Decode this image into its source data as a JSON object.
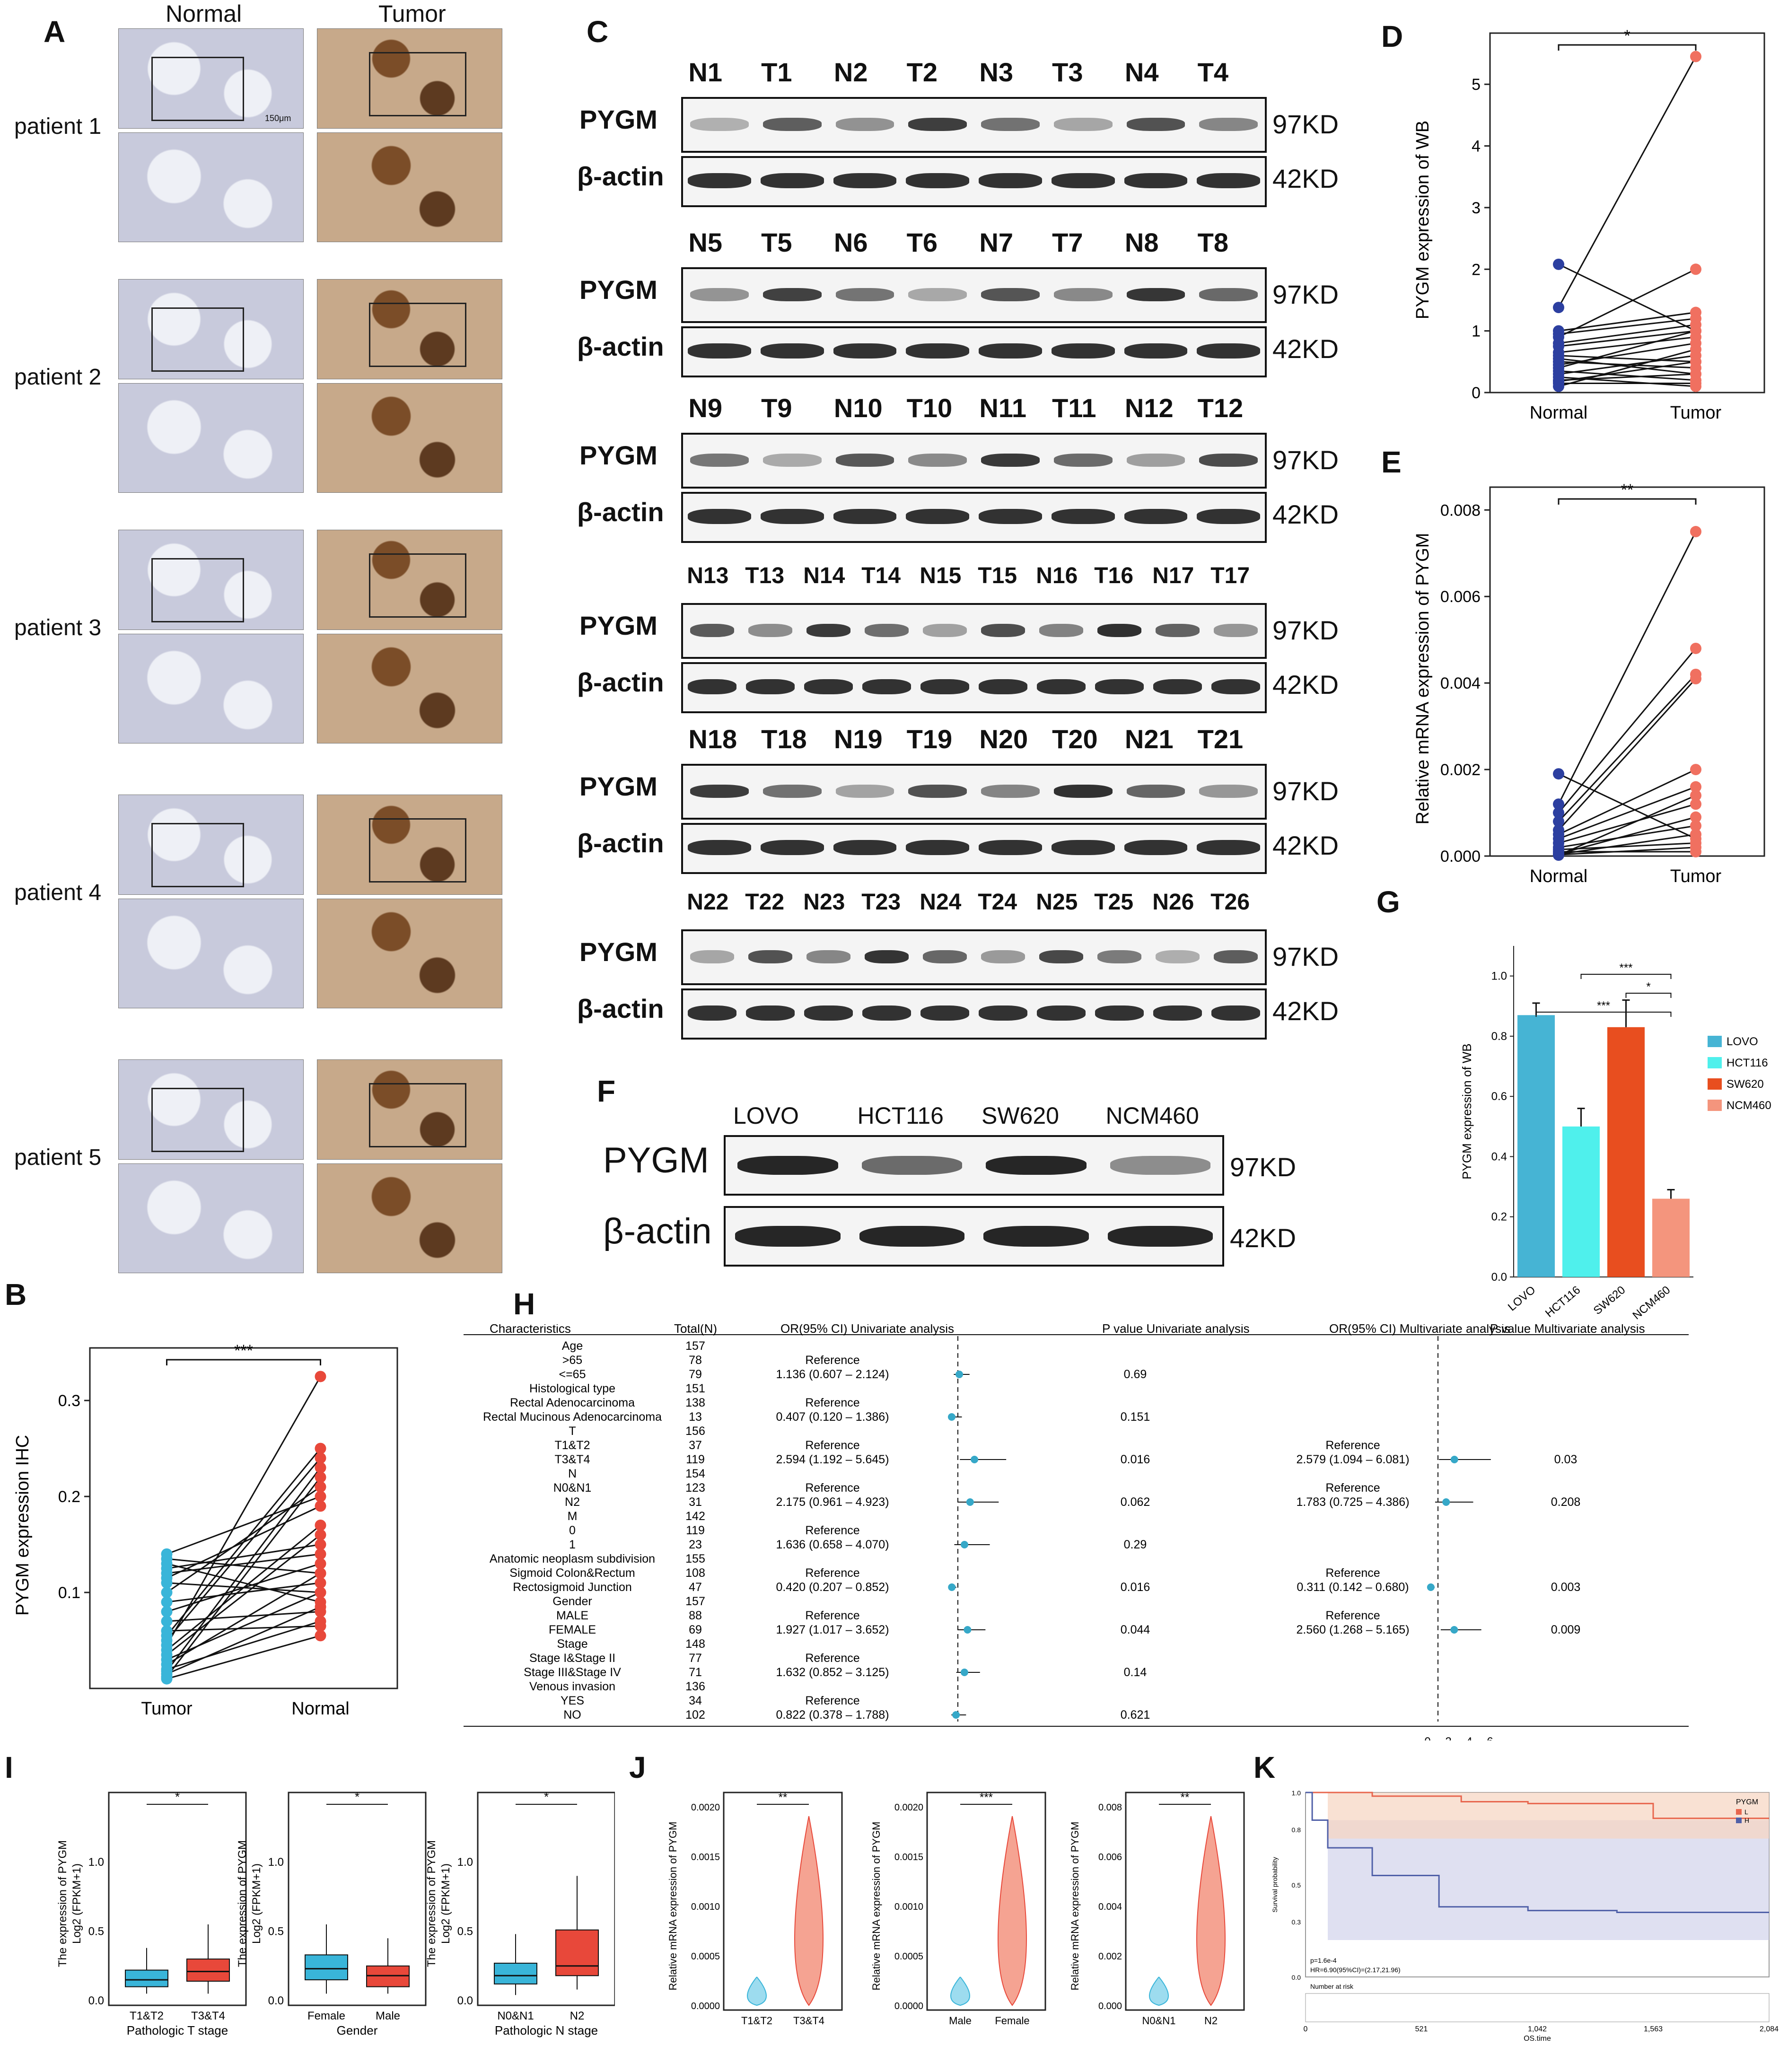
{
  "panels": {
    "A": {
      "label": "A",
      "col_normal": "Normal",
      "col_tumor": "Tumor",
      "rows": [
        "patient 1",
        "patient 2",
        "patient 3",
        "patient 4",
        "patient 5"
      ],
      "scale_bar": "150μm"
    },
    "B": {
      "label": "B",
      "ylabel": "PYGM expression IHC",
      "xcats": [
        "Tumor",
        "Normal"
      ],
      "sig": "***"
    },
    "C": {
      "label": "C",
      "rows": [
        {
          "lanes": [
            "N1",
            "T1",
            "N2",
            "T2",
            "N3",
            "T3",
            "N4",
            "T4"
          ]
        },
        {
          "lanes": [
            "N5",
            "T5",
            "N6",
            "T6",
            "N7",
            "T7",
            "N8",
            "T8"
          ]
        },
        {
          "lanes": [
            "N9",
            "T9",
            "N10",
            "T10",
            "N11",
            "T11",
            "N12",
            "T12"
          ]
        },
        {
          "lanes": [
            "N13",
            "T13",
            "N14",
            "T14",
            "N15",
            "T15",
            "N16",
            "T16",
            "N17",
            "T17"
          ]
        },
        {
          "lanes": [
            "N18",
            "T18",
            "N19",
            "T19",
            "N20",
            "T20",
            "N21",
            "T21"
          ]
        },
        {
          "lanes": [
            "N22",
            "T22",
            "N23",
            "T23",
            "N24",
            "T24",
            "N25",
            "T25",
            "N26",
            "T26"
          ]
        }
      ],
      "protein_label": "PYGM",
      "control_label": "β-actin",
      "mw_protein": "97KD",
      "mw_control": "42KD"
    },
    "D": {
      "label": "D",
      "ylabel": "PYGM expression of WB",
      "xcats": [
        "Normal",
        "Tumor"
      ],
      "sig": "*",
      "yticks": [
        "0",
        "1",
        "2",
        "3",
        "4",
        "5"
      ]
    },
    "E": {
      "label": "E",
      "ylabel": "Relative mRNA expression of PYGM",
      "xcats": [
        "Normal",
        "Tumor"
      ],
      "sig": "**",
      "yticks": [
        "0.000",
        "0.002",
        "0.004",
        "0.006",
        "0.008"
      ]
    },
    "F": {
      "label": "F",
      "lanes": [
        "LOVO",
        "HCT116",
        "SW620",
        "NCM460"
      ],
      "protein_label": "PYGM",
      "control_label": "β-actin",
      "mw_protein": "97KD",
      "mw_control": "42KD"
    },
    "G": {
      "label": "G",
      "ylabel": "PYGM expression of WB",
      "sigs": [
        "***",
        "*",
        "***"
      ],
      "yticks": [
        "0.0",
        "0.2",
        "0.4",
        "0.6",
        "0.8",
        "1.0"
      ]
    },
    "H": {
      "label": "H",
      "headers": [
        "Characteristics",
        "Total(N)",
        "OR(95% CI) Univariate analysis",
        "P value Univariate analysis",
        "OR(95% CI) Multivariate analysis",
        "P value Multivariate analysis"
      ],
      "rows": [
        {
          "c": "Age",
          "n": "157",
          "or": "",
          "p": "",
          "mor": "",
          "mp": ""
        },
        {
          "c": ">65",
          "n": "78",
          "or": "Reference",
          "p": "",
          "mor": "",
          "mp": ""
        },
        {
          "c": "<=65",
          "n": "79",
          "or": "1.136 (0.607 – 2.124)",
          "p": "0.69",
          "mor": "",
          "mp": ""
        },
        {
          "c": "Histological type",
          "n": "151",
          "or": "",
          "p": "",
          "mor": "",
          "mp": ""
        },
        {
          "c": "Rectal Adenocarcinoma",
          "n": "138",
          "or": "Reference",
          "p": "",
          "mor": "",
          "mp": ""
        },
        {
          "c": "Rectal Mucinous Adenocarcinoma",
          "n": "13",
          "or": "0.407 (0.120 – 1.386)",
          "p": "0.151",
          "mor": "",
          "mp": ""
        },
        {
          "c": "T",
          "n": "156",
          "or": "",
          "p": "",
          "mor": "",
          "mp": ""
        },
        {
          "c": "T1&T2",
          "n": "37",
          "or": "Reference",
          "p": "",
          "mor": "Reference",
          "mp": ""
        },
        {
          "c": "T3&T4",
          "n": "119",
          "or": "2.594 (1.192 – 5.645)",
          "p": "0.016",
          "mor": "2.579 (1.094 – 6.081)",
          "mp": "0.03"
        },
        {
          "c": "N",
          "n": "154",
          "or": "",
          "p": "",
          "mor": "",
          "mp": ""
        },
        {
          "c": "N0&N1",
          "n": "123",
          "or": "Reference",
          "p": "",
          "mor": "Reference",
          "mp": ""
        },
        {
          "c": "N2",
          "n": "31",
          "or": "2.175 (0.961 – 4.923)",
          "p": "0.062",
          "mor": "1.783 (0.725 – 4.386)",
          "mp": "0.208"
        },
        {
          "c": "M",
          "n": "142",
          "or": "",
          "p": "",
          "mor": "",
          "mp": ""
        },
        {
          "c": "0",
          "n": "119",
          "or": "Reference",
          "p": "",
          "mor": "",
          "mp": ""
        },
        {
          "c": "1",
          "n": "23",
          "or": "1.636 (0.658 – 4.070)",
          "p": "0.29",
          "mor": "",
          "mp": ""
        },
        {
          "c": "Anatomic neoplasm subdivision",
          "n": "155",
          "or": "",
          "p": "",
          "mor": "",
          "mp": ""
        },
        {
          "c": "Sigmoid Colon&Rectum",
          "n": "108",
          "or": "Reference",
          "p": "",
          "mor": "Reference",
          "mp": ""
        },
        {
          "c": "Rectosigmoid Junction",
          "n": "47",
          "or": "0.420 (0.207 – 0.852)",
          "p": "0.016",
          "mor": "0.311 (0.142 – 0.680)",
          "mp": "0.003"
        },
        {
          "c": "Gender",
          "n": "157",
          "or": "",
          "p": "",
          "mor": "",
          "mp": ""
        },
        {
          "c": "MALE",
          "n": "88",
          "or": "Reference",
          "p": "",
          "mor": "Reference",
          "mp": ""
        },
        {
          "c": "FEMALE",
          "n": "69",
          "or": "1.927 (1.017 – 3.652)",
          "p": "0.044",
          "mor": "2.560 (1.268 – 5.165)",
          "mp": "0.009"
        },
        {
          "c": "Stage",
          "n": "148",
          "or": "",
          "p": "",
          "mor": "",
          "mp": ""
        },
        {
          "c": "Stage I&Stage II",
          "n": "77",
          "or": "Reference",
          "p": "",
          "mor": "",
          "mp": ""
        },
        {
          "c": "Stage III&Stage IV",
          "n": "71",
          "or": "1.632 (0.852 – 3.125)",
          "p": "0.14",
          "mor": "",
          "mp": ""
        },
        {
          "c": "Venous invasion",
          "n": "136",
          "or": "",
          "p": "",
          "mor": "",
          "mp": ""
        },
        {
          "c": "YES",
          "n": "34",
          "or": "Reference",
          "p": "",
          "mor": "",
          "mp": ""
        },
        {
          "c": "NO",
          "n": "102",
          "or": "0.822 (0.378 – 1.788)",
          "p": "0.621",
          "mor": "",
          "mp": ""
        }
      ],
      "multi_axis_ticks": [
        "0",
        "2",
        "4",
        "6"
      ]
    },
    "I": {
      "label": "I",
      "ylabel1": "The expression of PYGM",
      "ylabel2": "Log2 (FPKM+1)",
      "sub": [
        {
          "xcats": [
            "T1&T2",
            "T3&T4"
          ],
          "xlabel": "Pathologic T stage",
          "sig": "*"
        },
        {
          "xcats": [
            "Female",
            "Male"
          ],
          "xlabel": "Gender",
          "sig": "*"
        },
        {
          "xcats": [
            "N0&N1",
            "N2"
          ],
          "xlabel": "Pathologic N stage",
          "sig": "*"
        }
      ],
      "yticks": [
        "0.0",
        "0.5",
        "1.0"
      ]
    },
    "J": {
      "label": "J",
      "ylabel": "Relative mRNA expression of PYGM",
      "sub": [
        {
          "xcats": [
            "T1&T2",
            "T3&T4"
          ],
          "sig": "**",
          "yticks": [
            "0.0000",
            "0.0005",
            "0.0010",
            "0.0015",
            "0.0020"
          ]
        },
        {
          "xcats": [
            "Male",
            "Female"
          ],
          "sig": "***",
          "yticks": [
            "0.0000",
            "0.0005",
            "0.0010",
            "0.0015",
            "0.0020"
          ]
        },
        {
          "xcats": [
            "N0&N1",
            "N2"
          ],
          "sig": "**",
          "yticks": [
            "0.000",
            "0.002",
            "0.004",
            "0.006",
            "0.008"
          ]
        }
      ]
    },
    "K": {
      "label": "K",
      "legend_title": "PYGM",
      "legend_items": [
        "L",
        "H"
      ],
      "ylabel": "Survival probability",
      "yticks": [
        "0.0",
        "0.3",
        "0.5",
        "0.8",
        "1.0"
      ],
      "xticks": [
        "0",
        "521",
        "1,042",
        "1,563",
        "2,084"
      ],
      "xlabel": "OS.time",
      "pval": "p=1.6e-4",
      "hr": "HR=6.90(95%CI)=(2.17,21.96)",
      "risk_title": "Number at risk"
    }
  },
  "chart_data": [
    {
      "type": "scatter",
      "panel": "D",
      "title": "",
      "xlabel": "",
      "ylabel": "PYGM expression of WB",
      "categories": [
        "Normal",
        "Tumor"
      ],
      "ylim": [
        0,
        5.6
      ],
      "pairs": [
        [
          2.08,
          1.0
        ],
        [
          1.38,
          5.45
        ],
        [
          1.0,
          1.3
        ],
        [
          0.95,
          1.2
        ],
        [
          0.9,
          2.0
        ],
        [
          0.8,
          1.1
        ],
        [
          0.75,
          1.0
        ],
        [
          0.65,
          0.9
        ],
        [
          0.6,
          0.5
        ],
        [
          0.55,
          0.3
        ],
        [
          0.5,
          0.4
        ],
        [
          0.45,
          0.8
        ],
        [
          0.4,
          1.0
        ],
        [
          0.35,
          0.2
        ],
        [
          0.3,
          0.6
        ],
        [
          0.25,
          0.1
        ],
        [
          0.2,
          0.3
        ],
        [
          0.18,
          0.5
        ],
        [
          0.15,
          0.15
        ],
        [
          0.1,
          0.7
        ]
      ]
    },
    {
      "type": "scatter",
      "panel": "E",
      "title": "",
      "xlabel": "",
      "ylabel": "Relative mRNA expression of PYGM",
      "categories": [
        "Normal",
        "Tumor"
      ],
      "ylim": [
        0,
        0.0082
      ],
      "pairs": [
        [
          0.0019,
          0.0004
        ],
        [
          0.0012,
          0.0075
        ],
        [
          0.001,
          0.0048
        ],
        [
          0.0008,
          0.0042
        ],
        [
          0.0006,
          0.0041
        ],
        [
          0.0005,
          0.002
        ],
        [
          0.0004,
          0.0016
        ],
        [
          0.0003,
          0.0012
        ],
        [
          0.0002,
          0.0007
        ],
        [
          0.00015,
          0.0003
        ],
        [
          0.0001,
          0.0001
        ],
        [
          5e-05,
          0.0009
        ],
        [
          4e-05,
          0.0005
        ],
        [
          3e-05,
          0.0002
        ],
        [
          2e-05,
          0.0014
        ]
      ]
    },
    {
      "type": "scatter",
      "panel": "B",
      "title": "",
      "xlabel": "",
      "ylabel": "PYGM expression IHC",
      "categories": [
        "Tumor",
        "Normal"
      ],
      "ylim": [
        0,
        0.34
      ],
      "pairs": [
        [
          0.14,
          0.2
        ],
        [
          0.135,
          0.12
        ],
        [
          0.13,
          0.09
        ],
        [
          0.125,
          0.15
        ],
        [
          0.12,
          0.14
        ],
        [
          0.115,
          0.19
        ],
        [
          0.11,
          0.1
        ],
        [
          0.1,
          0.21
        ],
        [
          0.09,
          0.11
        ],
        [
          0.08,
          0.13
        ],
        [
          0.07,
          0.08
        ],
        [
          0.06,
          0.065
        ],
        [
          0.055,
          0.25
        ],
        [
          0.05,
          0.24
        ],
        [
          0.045,
          0.325
        ],
        [
          0.04,
          0.17
        ],
        [
          0.035,
          0.16
        ],
        [
          0.03,
          0.1
        ],
        [
          0.025,
          0.12
        ],
        [
          0.02,
          0.07
        ],
        [
          0.015,
          0.085
        ],
        [
          0.01,
          0.055
        ],
        [
          0.012,
          0.22
        ],
        [
          0.018,
          0.23
        ]
      ]
    },
    {
      "type": "bar",
      "panel": "G",
      "title": "",
      "xlabel": "",
      "ylabel": "PYGM expression of WB",
      "categories": [
        "LOVO",
        "HCT116",
        "SW620",
        "NCM460"
      ],
      "values": [
        0.87,
        0.5,
        0.83,
        0.26
      ],
      "errors": [
        0.04,
        0.06,
        0.09,
        0.03
      ],
      "colors": [
        "#46b4d4",
        "#4ff0ec",
        "#e84e1f",
        "#f4957d"
      ],
      "ylim": [
        0,
        1.1
      ]
    },
    {
      "type": "line",
      "panel": "K",
      "title": "",
      "xlabel": "OS.time",
      "ylabel": "Survival probability",
      "xlim": [
        0,
        2084
      ],
      "ylim": [
        0,
        1
      ],
      "series": [
        {
          "name": "L",
          "x": [
            0,
            300,
            700,
            1000,
            1300,
            1563,
            1800,
            2084
          ],
          "y": [
            1,
            0.98,
            0.95,
            0.94,
            0.94,
            0.86,
            0.86,
            0.86
          ]
        },
        {
          "name": "H",
          "x": [
            0,
            30,
            100,
            300,
            600,
            1000,
            1400,
            2084
          ],
          "y": [
            1,
            0.85,
            0.7,
            0.55,
            0.38,
            0.36,
            0.35,
            0.35
          ]
        }
      ]
    }
  ]
}
